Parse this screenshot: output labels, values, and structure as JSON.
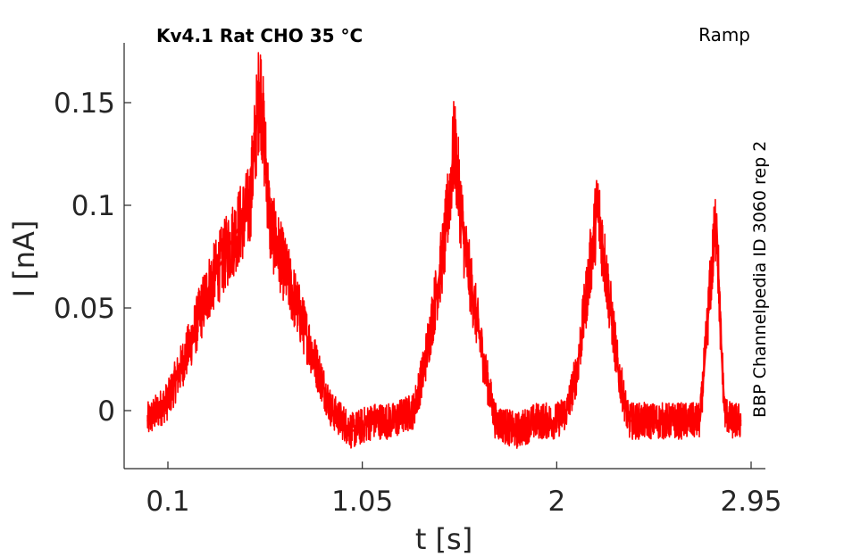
{
  "chart_data": {
    "type": "line",
    "title": "Kv4.1  Rat  CHO  35 °C",
    "protocol_label": "Ramp",
    "side_label": "BBP Channelpedia ID 3060 rep 2",
    "xlabel": "t [s]",
    "ylabel": "I [nA]",
    "xlim": [
      -0.125,
      3.0
    ],
    "ylim": [
      -0.03,
      0.18
    ],
    "xticks": [
      0.1,
      1.05,
      2,
      2.95
    ],
    "xtick_labels": [
      "0.1",
      "1.05",
      "2",
      "2.95"
    ],
    "yticks": [
      0,
      0.05,
      0.1,
      0.15
    ],
    "ytick_labels": [
      "0",
      "0.05",
      "0.1",
      "0.15"
    ],
    "grid": false,
    "series": [
      {
        "color": "#ff0000",
        "x": [
          0.0,
          0.1,
          0.2,
          0.3,
          0.4,
          0.5,
          0.55,
          0.6,
          0.7,
          0.8,
          0.9,
          1.0,
          1.1,
          1.2,
          1.3,
          1.35,
          1.4,
          1.45,
          1.5,
          1.55,
          1.6,
          1.65,
          1.7,
          1.8,
          1.9,
          2.0,
          2.05,
          2.1,
          2.15,
          2.2,
          2.25,
          2.3,
          2.35,
          2.4,
          2.5,
          2.6,
          2.7,
          2.72,
          2.75,
          2.78,
          2.8,
          2.82,
          2.85,
          2.9
        ],
        "y": [
          -0.005,
          0.005,
          0.03,
          0.06,
          0.08,
          0.1,
          0.16,
          0.09,
          0.06,
          0.03,
          0.0,
          -0.01,
          -0.005,
          -0.005,
          0.0,
          0.02,
          0.05,
          0.08,
          0.13,
          0.08,
          0.05,
          0.02,
          -0.005,
          -0.01,
          -0.005,
          -0.005,
          0.0,
          0.02,
          0.06,
          0.1,
          0.06,
          0.02,
          -0.005,
          -0.005,
          -0.005,
          -0.005,
          -0.005,
          0.02,
          0.06,
          0.095,
          0.04,
          0.0,
          -0.005,
          -0.005
        ]
      }
    ]
  }
}
